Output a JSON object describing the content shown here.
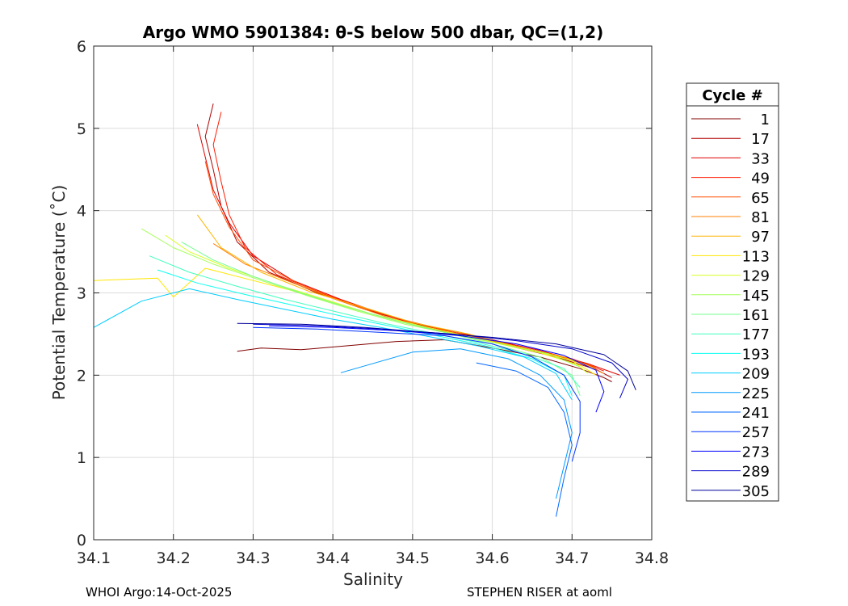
{
  "chart_data": {
    "type": "line",
    "title": "Argo WMO 5901384: θ-S below 500 dbar,  QC=(1,2)",
    "xlabel": "Salinity",
    "ylabel": "Potential Temperature (˚C)",
    "xlim": [
      34.1,
      34.8
    ],
    "ylim": [
      0,
      6
    ],
    "xticks": [
      "34.1",
      "34.2",
      "34.3",
      "34.4",
      "34.5",
      "34.6",
      "34.7",
      "34.8"
    ],
    "yticks": [
      "0",
      "1",
      "2",
      "3",
      "4",
      "5",
      "6"
    ],
    "grid": true,
    "legend": {
      "title": "Cycle #",
      "placement": "right-outside",
      "entries": [
        "1",
        "17",
        "33",
        "49",
        "65",
        "81",
        "97",
        "113",
        "129",
        "145",
        "161",
        "177",
        "193",
        "209",
        "225",
        "241",
        "257",
        "273",
        "289",
        "305"
      ],
      "colors": [
        "#800000",
        "#b00000",
        "#e00000",
        "#ff1a00",
        "#ff4d00",
        "#ff8000",
        "#ffb300",
        "#ffe600",
        "#d9ff26",
        "#a6ff59",
        "#73ff8c",
        "#40ffbf",
        "#0dfff2",
        "#00ccff",
        "#0099ff",
        "#0066ff",
        "#0033ff",
        "#0000ff",
        "#0000cc",
        "#000099"
      ]
    },
    "series": [
      {
        "name": "1",
        "color": "#800000",
        "points": [
          [
            34.28,
            2.29
          ],
          [
            34.31,
            2.33
          ],
          [
            34.36,
            2.31
          ],
          [
            34.42,
            2.36
          ],
          [
            34.48,
            2.41
          ],
          [
            34.54,
            2.43
          ],
          [
            34.6,
            2.33
          ],
          [
            34.66,
            2.22
          ],
          [
            34.71,
            2.08
          ],
          [
            34.74,
            1.97
          ],
          [
            34.75,
            1.92
          ]
        ]
      },
      {
        "name": "17",
        "color": "#b00000",
        "points": [
          [
            34.25,
            5.3
          ],
          [
            34.24,
            4.9
          ],
          [
            34.25,
            4.5
          ],
          [
            34.26,
            4.05
          ],
          [
            34.28,
            3.62
          ],
          [
            34.32,
            3.25
          ],
          [
            34.38,
            3.0
          ],
          [
            34.44,
            2.8
          ],
          [
            34.5,
            2.63
          ],
          [
            34.56,
            2.52
          ],
          [
            34.62,
            2.36
          ],
          [
            34.68,
            2.22
          ],
          [
            34.73,
            2.07
          ],
          [
            34.75,
            1.97
          ]
        ]
      },
      {
        "name": "33",
        "color": "#e00000",
        "points": [
          [
            34.23,
            5.05
          ],
          [
            34.24,
            4.65
          ],
          [
            34.25,
            4.25
          ],
          [
            34.27,
            3.85
          ],
          [
            34.3,
            3.45
          ],
          [
            34.35,
            3.15
          ],
          [
            34.41,
            2.92
          ],
          [
            34.47,
            2.72
          ],
          [
            34.53,
            2.56
          ],
          [
            34.6,
            2.43
          ],
          [
            34.66,
            2.3
          ],
          [
            34.72,
            2.14
          ],
          [
            34.76,
            2.0
          ]
        ]
      },
      {
        "name": "49",
        "color": "#ff1a00",
        "points": [
          [
            34.26,
            5.2
          ],
          [
            34.25,
            4.8
          ],
          [
            34.26,
            4.35
          ],
          [
            34.27,
            3.95
          ],
          [
            34.29,
            3.55
          ],
          [
            34.33,
            3.22
          ],
          [
            34.39,
            2.98
          ],
          [
            34.45,
            2.78
          ],
          [
            34.51,
            2.6
          ],
          [
            34.58,
            2.47
          ],
          [
            34.64,
            2.33
          ],
          [
            34.7,
            2.2
          ],
          [
            34.74,
            2.05
          ]
        ]
      },
      {
        "name": "65",
        "color": "#ff4d00",
        "points": [
          [
            34.24,
            4.6
          ],
          [
            34.25,
            4.2
          ],
          [
            34.27,
            3.8
          ],
          [
            34.3,
            3.4
          ],
          [
            34.36,
            3.1
          ],
          [
            34.42,
            2.87
          ],
          [
            34.49,
            2.67
          ],
          [
            34.56,
            2.5
          ],
          [
            34.62,
            2.37
          ],
          [
            34.68,
            2.24
          ],
          [
            34.73,
            2.1
          ]
        ]
      },
      {
        "name": "81",
        "color": "#ff8000",
        "points": [
          [
            34.25,
            3.6
          ],
          [
            34.29,
            3.35
          ],
          [
            34.35,
            3.12
          ],
          [
            34.41,
            2.9
          ],
          [
            34.47,
            2.7
          ],
          [
            34.53,
            2.55
          ],
          [
            34.6,
            2.42
          ],
          [
            34.66,
            2.28
          ],
          [
            34.71,
            2.15
          ],
          [
            34.74,
            2.02
          ]
        ]
      },
      {
        "name": "97",
        "color": "#ffb300",
        "points": [
          [
            34.23,
            3.95
          ],
          [
            34.26,
            3.55
          ],
          [
            34.31,
            3.25
          ],
          [
            34.37,
            3.02
          ],
          [
            34.44,
            2.82
          ],
          [
            34.5,
            2.64
          ],
          [
            34.57,
            2.5
          ],
          [
            34.63,
            2.35
          ],
          [
            34.69,
            2.22
          ],
          [
            34.73,
            2.08
          ]
        ]
      },
      {
        "name": "113",
        "color": "#ffe600",
        "points": [
          [
            34.1,
            3.15
          ],
          [
            34.18,
            3.18
          ],
          [
            34.2,
            2.95
          ],
          [
            34.24,
            3.3
          ],
          [
            34.3,
            3.15
          ],
          [
            34.36,
            3.0
          ],
          [
            34.42,
            2.82
          ],
          [
            34.48,
            2.66
          ],
          [
            34.54,
            2.52
          ],
          [
            34.6,
            2.4
          ],
          [
            34.66,
            2.27
          ],
          [
            34.71,
            2.12
          ],
          [
            34.73,
            2.0
          ]
        ]
      },
      {
        "name": "129",
        "color": "#d9ff26",
        "points": [
          [
            34.19,
            3.7
          ],
          [
            34.22,
            3.5
          ],
          [
            34.27,
            3.3
          ],
          [
            34.33,
            3.1
          ],
          [
            34.39,
            2.92
          ],
          [
            34.45,
            2.74
          ],
          [
            34.52,
            2.58
          ],
          [
            34.58,
            2.45
          ],
          [
            34.64,
            2.32
          ],
          [
            34.7,
            2.18
          ],
          [
            34.72,
            2.02
          ]
        ]
      },
      {
        "name": "145",
        "color": "#a6ff59",
        "points": [
          [
            34.16,
            3.78
          ],
          [
            34.2,
            3.55
          ],
          [
            34.25,
            3.35
          ],
          [
            34.31,
            3.15
          ],
          [
            34.37,
            2.96
          ],
          [
            34.43,
            2.78
          ],
          [
            34.49,
            2.62
          ],
          [
            34.55,
            2.5
          ],
          [
            34.61,
            2.38
          ],
          [
            34.67,
            2.26
          ],
          [
            34.71,
            2.1
          ]
        ]
      },
      {
        "name": "161",
        "color": "#73ff8c",
        "points": [
          [
            34.21,
            3.62
          ],
          [
            34.25,
            3.4
          ],
          [
            34.3,
            3.2
          ],
          [
            34.36,
            3.0
          ],
          [
            34.42,
            2.82
          ],
          [
            34.48,
            2.66
          ],
          [
            34.54,
            2.52
          ],
          [
            34.6,
            2.38
          ],
          [
            34.66,
            2.22
          ],
          [
            34.7,
            2.0
          ],
          [
            34.71,
            1.75
          ]
        ]
      },
      {
        "name": "177",
        "color": "#40ffbf",
        "points": [
          [
            34.17,
            3.45
          ],
          [
            34.22,
            3.25
          ],
          [
            34.28,
            3.08
          ],
          [
            34.34,
            2.92
          ],
          [
            34.4,
            2.78
          ],
          [
            34.46,
            2.64
          ],
          [
            34.52,
            2.52
          ],
          [
            34.58,
            2.4
          ],
          [
            34.64,
            2.26
          ],
          [
            34.69,
            2.08
          ],
          [
            34.71,
            1.85
          ]
        ]
      },
      {
        "name": "193",
        "color": "#0dfff2",
        "points": [
          [
            34.18,
            3.28
          ],
          [
            34.23,
            3.12
          ],
          [
            34.29,
            2.98
          ],
          [
            34.35,
            2.85
          ],
          [
            34.41,
            2.72
          ],
          [
            34.47,
            2.6
          ],
          [
            34.53,
            2.48
          ],
          [
            34.59,
            2.36
          ],
          [
            34.65,
            2.2
          ],
          [
            34.69,
            2.0
          ],
          [
            34.7,
            1.75
          ]
        ]
      },
      {
        "name": "209",
        "color": "#00ccff",
        "points": [
          [
            34.1,
            2.58
          ],
          [
            34.16,
            2.9
          ],
          [
            34.22,
            3.05
          ],
          [
            34.28,
            2.92
          ],
          [
            34.34,
            2.8
          ],
          [
            34.4,
            2.68
          ],
          [
            34.46,
            2.58
          ],
          [
            34.52,
            2.47
          ],
          [
            34.58,
            2.36
          ],
          [
            34.64,
            2.22
          ],
          [
            34.68,
            2.02
          ],
          [
            34.7,
            1.7
          ]
        ]
      },
      {
        "name": "225",
        "color": "#0099ff",
        "points": [
          [
            34.41,
            2.03
          ],
          [
            34.5,
            2.28
          ],
          [
            34.56,
            2.32
          ],
          [
            34.62,
            2.2
          ],
          [
            34.66,
            2.0
          ],
          [
            34.69,
            1.7
          ],
          [
            34.7,
            1.3
          ],
          [
            34.69,
            0.9
          ],
          [
            34.68,
            0.5
          ]
        ]
      },
      {
        "name": "241",
        "color": "#0066ff",
        "points": [
          [
            34.58,
            2.15
          ],
          [
            34.63,
            2.05
          ],
          [
            34.67,
            1.85
          ],
          [
            34.69,
            1.55
          ],
          [
            34.7,
            1.15
          ],
          [
            34.69,
            0.75
          ],
          [
            34.68,
            0.28
          ]
        ]
      },
      {
        "name": "257",
        "color": "#0033ff",
        "points": [
          [
            34.3,
            2.58
          ],
          [
            34.38,
            2.56
          ],
          [
            34.46,
            2.52
          ],
          [
            34.54,
            2.48
          ],
          [
            34.6,
            2.38
          ],
          [
            34.65,
            2.22
          ],
          [
            34.69,
            2.0
          ],
          [
            34.71,
            1.68
          ],
          [
            34.71,
            1.3
          ],
          [
            34.7,
            0.95
          ]
        ]
      },
      {
        "name": "273",
        "color": "#0000ff",
        "points": [
          [
            34.32,
            2.6
          ],
          [
            34.4,
            2.58
          ],
          [
            34.48,
            2.54
          ],
          [
            34.56,
            2.48
          ],
          [
            34.63,
            2.38
          ],
          [
            34.69,
            2.24
          ],
          [
            34.73,
            2.06
          ],
          [
            34.74,
            1.8
          ],
          [
            34.73,
            1.55
          ]
        ]
      },
      {
        "name": "289",
        "color": "#0000cc",
        "points": [
          [
            34.3,
            2.62
          ],
          [
            34.38,
            2.6
          ],
          [
            34.46,
            2.56
          ],
          [
            34.55,
            2.5
          ],
          [
            34.63,
            2.42
          ],
          [
            34.7,
            2.32
          ],
          [
            34.75,
            2.15
          ],
          [
            34.77,
            1.95
          ],
          [
            34.76,
            1.72
          ]
        ]
      },
      {
        "name": "305",
        "color": "#000099",
        "points": [
          [
            34.28,
            2.63
          ],
          [
            34.36,
            2.62
          ],
          [
            34.44,
            2.58
          ],
          [
            34.52,
            2.52
          ],
          [
            34.6,
            2.46
          ],
          [
            34.68,
            2.38
          ],
          [
            34.74,
            2.25
          ],
          [
            34.77,
            2.05
          ],
          [
            34.78,
            1.82
          ]
        ]
      }
    ]
  },
  "footer": {
    "left": "WHOI Argo:14-Oct-2025",
    "right": "STEPHEN RISER at aoml"
  }
}
